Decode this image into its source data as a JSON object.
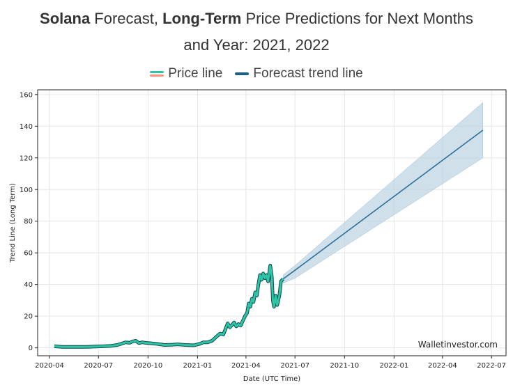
{
  "title": {
    "bold1": "Solana",
    "text1": " Forecast, ",
    "bold2": "Long-Term",
    "text2": " Price Predictions for Next Months",
    "line2": "and Year: 2021, 2022"
  },
  "legend": {
    "price": "Price line",
    "forecast": "Forecast trend line"
  },
  "watermark": "Walletinvestor.com",
  "colors": {
    "price": "#2ec4a6",
    "price_outline": "#0d4a50",
    "price_swatch_alt": "#f0957a",
    "forecast": "#2f6f98",
    "band": "#b5cfe0",
    "grid": "#e6e6e6"
  },
  "chart_data": {
    "type": "line",
    "xlabel": "Date (UTC Time)",
    "ylabel": "Trend Line (Long Term)",
    "ylim": [
      -5,
      163
    ],
    "xlim": [
      "2020-03-10",
      "2022-07-28"
    ],
    "grid": true,
    "legend_position": "top-center",
    "xticks": [
      "2020-04",
      "2020-07",
      "2020-10",
      "2021-01",
      "2021-04",
      "2021-07",
      "2021-10",
      "2022-01",
      "2022-04",
      "2022-07"
    ],
    "yticks": [
      0,
      20,
      40,
      60,
      80,
      100,
      120,
      140,
      160
    ],
    "series": [
      {
        "name": "Price line",
        "points": [
          [
            "2020-04-10",
            1.0
          ],
          [
            "2020-04-25",
            0.6
          ],
          [
            "2020-05-15",
            0.6
          ],
          [
            "2020-06-05",
            0.6
          ],
          [
            "2020-06-25",
            0.8
          ],
          [
            "2020-07-10",
            1.0
          ],
          [
            "2020-07-25",
            1.3
          ],
          [
            "2020-08-05",
            1.8
          ],
          [
            "2020-08-12",
            2.5
          ],
          [
            "2020-08-20",
            3.5
          ],
          [
            "2020-08-28",
            3.2
          ],
          [
            "2020-09-02",
            4.0
          ],
          [
            "2020-09-08",
            4.5
          ],
          [
            "2020-09-14",
            3.0
          ],
          [
            "2020-09-20",
            3.5
          ],
          [
            "2020-10-01",
            3.0
          ],
          [
            "2020-10-15",
            2.6
          ],
          [
            "2020-11-01",
            1.8
          ],
          [
            "2020-11-15",
            2.0
          ],
          [
            "2020-11-25",
            2.2
          ],
          [
            "2020-12-10",
            1.8
          ],
          [
            "2020-12-25",
            1.6
          ],
          [
            "2021-01-05",
            2.5
          ],
          [
            "2021-01-12",
            3.5
          ],
          [
            "2021-01-20",
            3.5
          ],
          [
            "2021-01-28",
            4.5
          ],
          [
            "2021-02-05",
            7.0
          ],
          [
            "2021-02-12",
            9.0
          ],
          [
            "2021-02-18",
            8.5
          ],
          [
            "2021-02-22",
            12.0
          ],
          [
            "2021-02-26",
            15.5
          ],
          [
            "2021-03-02",
            13.0
          ],
          [
            "2021-03-06",
            14.5
          ],
          [
            "2021-03-10",
            16.0
          ],
          [
            "2021-03-14",
            13.5
          ],
          [
            "2021-03-18",
            15.0
          ],
          [
            "2021-03-22",
            14.0
          ],
          [
            "2021-03-26",
            17.0
          ],
          [
            "2021-03-30",
            20.0
          ],
          [
            "2021-04-03",
            22.0
          ],
          [
            "2021-04-06",
            28.0
          ],
          [
            "2021-04-09",
            26.0
          ],
          [
            "2021-04-12",
            31.0
          ],
          [
            "2021-04-15",
            29.0
          ],
          [
            "2021-04-18",
            35.0
          ],
          [
            "2021-04-21",
            33.0
          ],
          [
            "2021-04-24",
            40.0
          ],
          [
            "2021-04-27",
            46.0
          ],
          [
            "2021-04-30",
            43.0
          ],
          [
            "2021-05-03",
            47.0
          ],
          [
            "2021-05-06",
            44.0
          ],
          [
            "2021-05-09",
            46.0
          ],
          [
            "2021-05-12",
            42.0
          ],
          [
            "2021-05-16",
            52.0
          ],
          [
            "2021-05-19",
            45.0
          ],
          [
            "2021-05-21",
            30.0
          ],
          [
            "2021-05-23",
            26.0
          ],
          [
            "2021-05-26",
            33.0
          ],
          [
            "2021-05-29",
            27.0
          ],
          [
            "2021-06-02",
            33.0
          ],
          [
            "2021-06-05",
            42.0
          ],
          [
            "2021-06-09",
            43.5
          ]
        ]
      },
      {
        "name": "Forecast trend line",
        "points": [
          [
            "2021-06-09",
            43.5
          ],
          [
            "2021-07-01",
            49.0
          ],
          [
            "2022-06-15",
            137.5
          ]
        ],
        "upper": [
          [
            "2021-06-09",
            46.0
          ],
          [
            "2021-07-01",
            52.0
          ],
          [
            "2022-06-15",
            155.0
          ]
        ],
        "lower": [
          [
            "2021-06-09",
            41.0
          ],
          [
            "2021-07-01",
            44.0
          ],
          [
            "2022-06-15",
            120.0
          ]
        ]
      }
    ]
  }
}
